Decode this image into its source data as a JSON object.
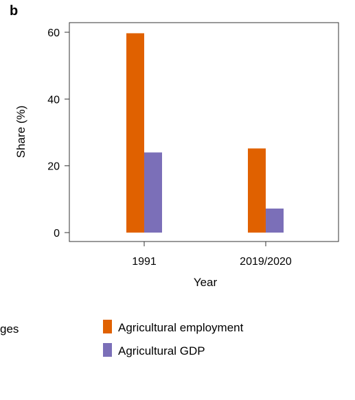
{
  "panel_label": "b",
  "cut_off_legend_text": "ges",
  "colors": {
    "agricultural_employment": "#e06100",
    "agricultural_gdp": "#7b6fb8",
    "axis": "#333333"
  },
  "chart_data": {
    "type": "bar",
    "categories": [
      "1991",
      "2019/2020"
    ],
    "series": [
      {
        "name": "Agricultural employment",
        "values": [
          59.7,
          25.2
        ],
        "color": "#e06100"
      },
      {
        "name": "Agricultural GDP",
        "values": [
          24.0,
          7.2
        ],
        "color": "#7b6fb8"
      }
    ],
    "xlabel": "Year",
    "ylabel": "Share (%)",
    "ylim": [
      0,
      60
    ],
    "yticks": [
      "0",
      "20",
      "40",
      "60"
    ],
    "grid": false,
    "legend": "bottom"
  }
}
